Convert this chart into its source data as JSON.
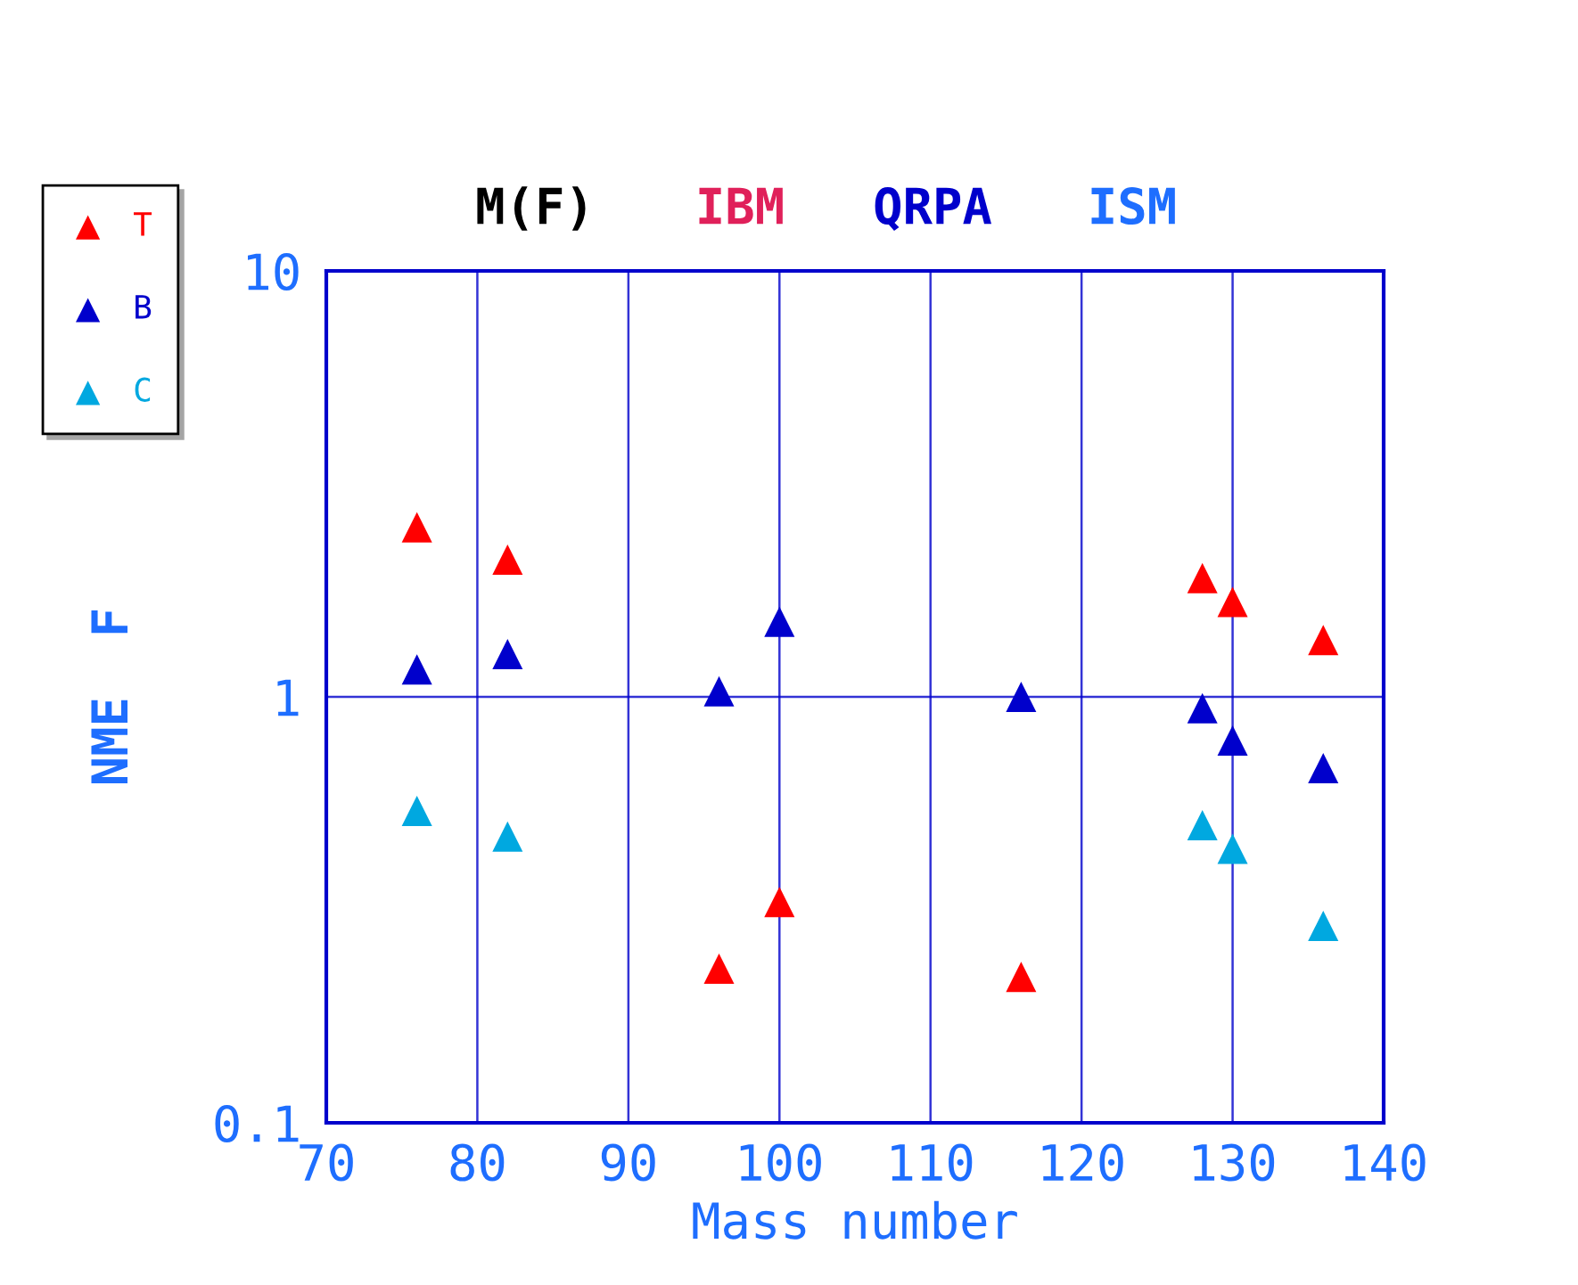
{
  "chart_data": {
    "type": "scatter",
    "annotations": [
      "M(F)",
      "IBM",
      "QRPA",
      "ISM"
    ],
    "xlabel": "Mass number",
    "ylabel": "NME  F",
    "log": "y",
    "xlim": [
      70,
      140
    ],
    "xticks": [
      70,
      80,
      90,
      100,
      110,
      120,
      130,
      140
    ],
    "ylim": [
      0.1,
      10
    ],
    "yticks": [
      0.1,
      1,
      10
    ],
    "grid": true,
    "legend": "top left",
    "marker": "triangle",
    "series": [
      {
        "name": "T",
        "color": "#ff0000",
        "x": [
          76,
          82,
          96,
          100,
          116,
          128,
          130,
          136
        ],
        "values": [
          2.5,
          2.1,
          0.23,
          0.33,
          0.22,
          1.9,
          1.67,
          1.36
        ]
      },
      {
        "name": "B",
        "color": "#0000cc",
        "x": [
          76,
          82,
          96,
          100,
          116,
          128,
          130,
          136
        ],
        "values": [
          1.16,
          1.26,
          1.03,
          1.5,
          1.0,
          0.94,
          0.79,
          0.68
        ]
      },
      {
        "name": "C",
        "color": "#00a8e0",
        "x": [
          76,
          82,
          128,
          130,
          136
        ],
        "values": [
          0.54,
          0.47,
          0.5,
          0.44,
          0.29
        ]
      }
    ]
  }
}
